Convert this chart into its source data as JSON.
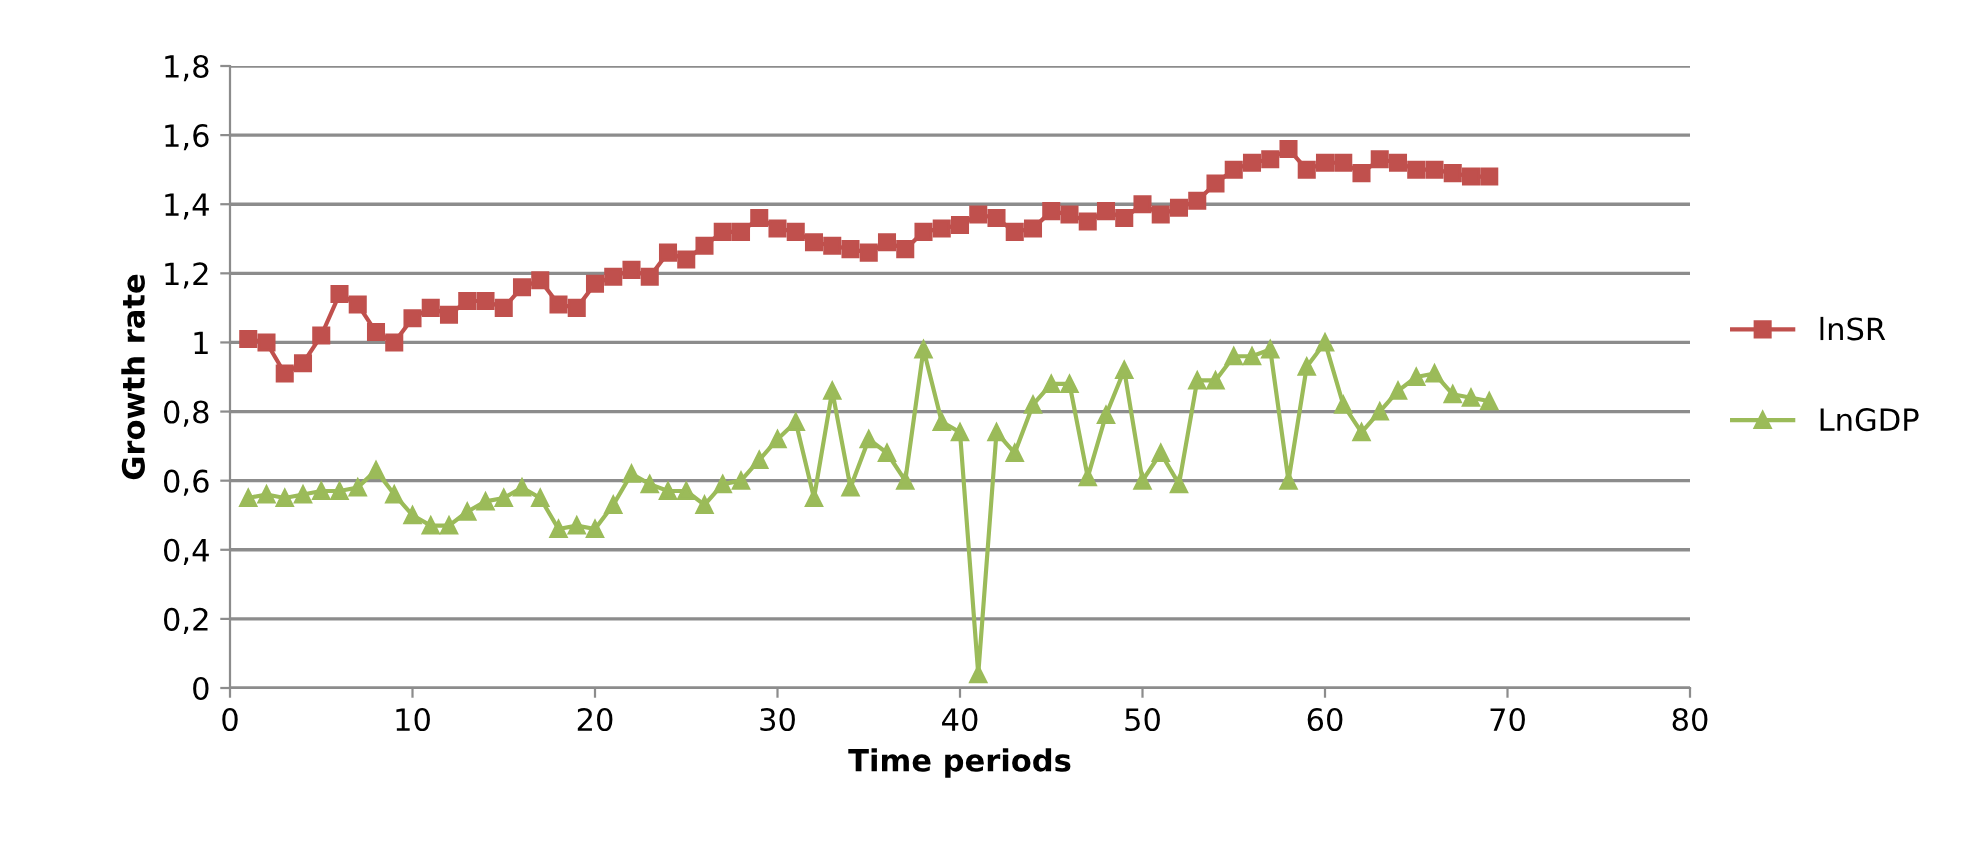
{
  "chart_data": {
    "type": "line",
    "xlabel": "Time periods",
    "ylabel": "Growth rate",
    "x": [
      1,
      2,
      3,
      4,
      5,
      6,
      7,
      8,
      9,
      10,
      11,
      12,
      13,
      14,
      15,
      16,
      17,
      18,
      19,
      20,
      21,
      22,
      23,
      24,
      25,
      26,
      27,
      28,
      29,
      30,
      31,
      32,
      33,
      34,
      35,
      36,
      37,
      38,
      39,
      40,
      41,
      42,
      43,
      44,
      45,
      46,
      47,
      48,
      49,
      50,
      51,
      52,
      53,
      54,
      55,
      56,
      57,
      58,
      59,
      60,
      61,
      62,
      63,
      64,
      65,
      66,
      67,
      68,
      69
    ],
    "series": [
      {
        "name": "lnSR",
        "color": "#c0504d",
        "marker": "square",
        "values": [
          1.01,
          1.0,
          0.91,
          0.94,
          1.02,
          1.14,
          1.11,
          1.03,
          1.0,
          1.07,
          1.1,
          1.08,
          1.12,
          1.12,
          1.1,
          1.16,
          1.18,
          1.11,
          1.1,
          1.17,
          1.19,
          1.21,
          1.19,
          1.26,
          1.24,
          1.28,
          1.32,
          1.32,
          1.36,
          1.33,
          1.32,
          1.29,
          1.28,
          1.27,
          1.26,
          1.29,
          1.27,
          1.32,
          1.33,
          1.34,
          1.37,
          1.36,
          1.32,
          1.33,
          1.38,
          1.37,
          1.35,
          1.38,
          1.36,
          1.4,
          1.37,
          1.39,
          1.41,
          1.46,
          1.5,
          1.52,
          1.53,
          1.56,
          1.5,
          1.52,
          1.52,
          1.49,
          1.53,
          1.52,
          1.5,
          1.5,
          1.49,
          1.48,
          1.48
        ]
      },
      {
        "name": "LnGDP",
        "color": "#9bbb59",
        "marker": "triangle",
        "values": [
          0.55,
          0.56,
          0.55,
          0.56,
          0.57,
          0.57,
          0.58,
          0.63,
          0.56,
          0.5,
          0.47,
          0.47,
          0.51,
          0.54,
          0.55,
          0.58,
          0.55,
          0.46,
          0.47,
          0.46,
          0.53,
          0.62,
          0.59,
          0.57,
          0.57,
          0.53,
          0.59,
          0.6,
          0.66,
          0.72,
          0.77,
          0.55,
          0.86,
          0.58,
          0.72,
          0.68,
          0.6,
          0.98,
          0.77,
          0.74,
          0.04,
          0.74,
          0.68,
          0.82,
          0.88,
          0.88,
          0.61,
          0.79,
          0.92,
          0.6,
          0.68,
          0.59,
          0.89,
          0.89,
          0.96,
          0.96,
          0.98,
          0.6,
          0.93,
          1.0,
          0.82,
          0.74,
          0.8,
          0.86,
          0.9,
          0.91,
          0.85,
          0.84,
          0.83
        ]
      }
    ],
    "xlim": [
      0,
      80
    ],
    "xticks": [
      0,
      10,
      20,
      30,
      40,
      50,
      60,
      70,
      80
    ],
    "ylim": [
      0,
      1.8
    ],
    "yticks": [
      0,
      {
        "value": 0.2,
        "label": "0,2"
      },
      {
        "value": 0.4,
        "label": "0,4"
      },
      {
        "value": 0.6,
        "label": "0,6"
      },
      {
        "value": 0.8,
        "label": "0,8"
      },
      1,
      {
        "value": 1.2,
        "label": "1,2"
      },
      {
        "value": 1.4,
        "label": "1,4"
      },
      {
        "value": 1.6,
        "label": "1,6"
      },
      {
        "value": 1.8,
        "label": "1,8"
      }
    ],
    "grid": "y",
    "legend": "right",
    "line_style": "solid"
  }
}
